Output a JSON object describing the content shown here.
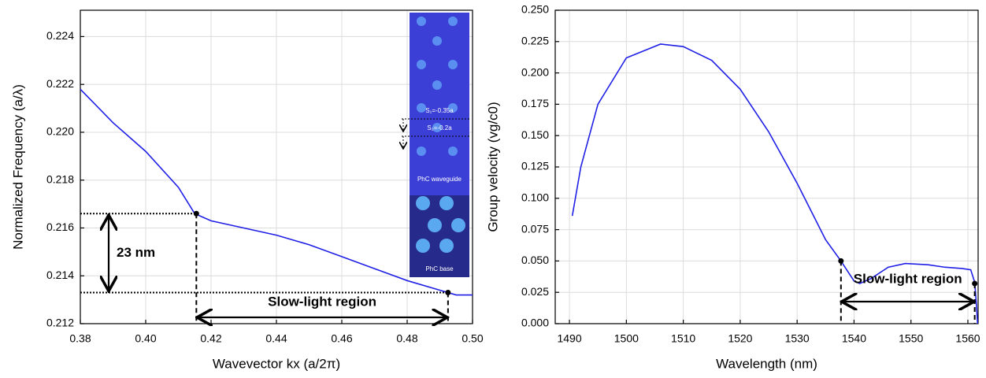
{
  "chart_data": [
    {
      "type": "line",
      "color": "#1f1fe6",
      "grid": true,
      "x_label": "Wavevector kx (a/2π)",
      "y_label": "Normalized Frequency (a/λ)",
      "x": [
        0.38,
        0.39,
        0.4,
        0.41,
        0.415,
        0.42,
        0.43,
        0.44,
        0.45,
        0.46,
        0.47,
        0.48,
        0.49,
        0.495,
        0.5
      ],
      "values": [
        0.2218,
        0.2204,
        0.2192,
        0.2177,
        0.2166,
        0.2163,
        0.216,
        0.2157,
        0.2153,
        0.2148,
        0.2143,
        0.2138,
        0.2134,
        0.2132,
        0.2132
      ],
      "xlim": [
        0.38,
        0.5
      ],
      "xticks": [
        0.38,
        {
          "value": 0.4,
          "label": "0.40"
        },
        0.42,
        0.44,
        0.46,
        0.48,
        {
          "value": 0.5,
          "label": "0.50"
        }
      ],
      "ylim": [
        0.212,
        0.2251
      ],
      "yticks": [
        0.212,
        0.214,
        0.216,
        0.218,
        {
          "value": 0.22,
          "label": "0.220"
        },
        0.222,
        0.224
      ],
      "markers": {
        "x": [
          0.4155,
          0.4925
        ],
        "y": [
          0.2166,
          0.2133
        ]
      },
      "annotations": [
        "23 nm",
        "Slow-light region"
      ],
      "inset_labels": [
        "S₁=-0.35a",
        "S₂=-0.2a",
        "PhC waveguide",
        "PhC base"
      ]
    },
    {
      "type": "line",
      "color": "#1f1fe6",
      "grid": true,
      "x_label": "Wavelength (nm)",
      "y_label": "Group velocity (vg/c0)",
      "x": [
        1490.5,
        1492,
        1495,
        1500,
        1506,
        1510,
        1515,
        1520,
        1525,
        1530,
        1535,
        1537.7,
        1540,
        1541,
        1543,
        1546,
        1549,
        1553,
        1556,
        1559,
        1560.5,
        1561.2,
        1561.5,
        1561.7
      ],
      "values": [
        0.086,
        0.125,
        0.175,
        0.212,
        0.223,
        0.221,
        0.21,
        0.187,
        0.153,
        0.112,
        0.067,
        0.05,
        0.034,
        0.032,
        0.036,
        0.045,
        0.048,
        0.047,
        0.045,
        0.044,
        0.043,
        0.033,
        0.015,
        0
      ],
      "xlim": [
        1487.5,
        1561.8
      ],
      "xticks": [
        1490,
        1500,
        1510,
        1520,
        1530,
        1540,
        1550,
        1560
      ],
      "ylim": [
        0,
        0.25
      ],
      "yticks": [
        {
          "value": 0,
          "label": "0.000"
        },
        0.025,
        {
          "value": 0.05,
          "label": "0.050"
        },
        0.075,
        {
          "value": 0.1,
          "label": "0.100"
        },
        0.125,
        {
          "value": 0.15,
          "label": "0.150"
        },
        0.175,
        {
          "value": 0.2,
          "label": "0.200"
        },
        0.225,
        {
          "value": 0.25,
          "label": "0.250"
        }
      ],
      "markers": {
        "x": [
          1537.7,
          1561.2
        ],
        "y": [
          0.05,
          0.032
        ]
      },
      "annotations": [
        "Slow-light region"
      ]
    }
  ]
}
